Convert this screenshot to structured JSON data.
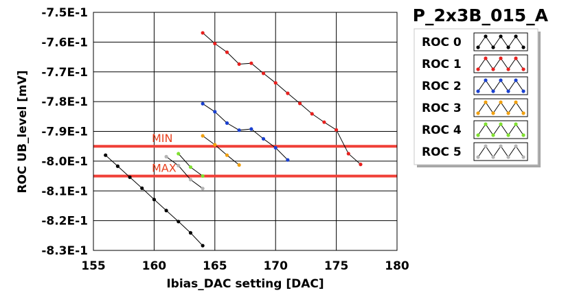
{
  "chart_data": {
    "type": "scatter",
    "title": "P_2x3B_015_A",
    "xlabel": "Ibias_DAC setting [DAC]",
    "ylabel": "ROC UB_level [mV]",
    "xlim": [
      155,
      180
    ],
    "ylim": [
      -0.83,
      -0.75
    ],
    "x_ticks": [
      "155",
      "160",
      "165",
      "170",
      "175",
      "180"
    ],
    "y_ticks": [
      "-7.5E-1",
      "-7.6E-1",
      "-7.7E-1",
      "-7.8E-1",
      "-7.9E-1",
      "-8.0E-1",
      "-8.1E-1",
      "-8.2E-1",
      "-8.3E-1"
    ],
    "grid": true,
    "legend_position": "right",
    "limits": [
      {
        "label": "MIN",
        "y": -0.795,
        "color": "#f04038"
      },
      {
        "label": "MAX",
        "y": -0.805,
        "color": "#f04038"
      }
    ],
    "series": [
      {
        "name": "ROC 0",
        "color": "#000000",
        "x": [
          156,
          157,
          158,
          159,
          160,
          161,
          162,
          163,
          164
        ],
        "y": [
          -0.798,
          -0.8017,
          -0.8054,
          -0.8091,
          -0.8129,
          -0.8166,
          -0.8203,
          -0.8241,
          -0.8284
        ]
      },
      {
        "name": "ROC 1",
        "color": "#e8201e",
        "x": [
          164,
          165,
          166,
          167,
          168,
          169,
          170,
          171,
          172,
          173,
          174,
          175,
          176,
          177
        ],
        "y": [
          -0.7569,
          -0.7605,
          -0.7634,
          -0.7674,
          -0.7671,
          -0.7705,
          -0.7737,
          -0.7772,
          -0.7806,
          -0.7841,
          -0.7869,
          -0.7895,
          -0.7975,
          -0.8011
        ]
      },
      {
        "name": "ROC 2",
        "color": "#1a40d0",
        "x": [
          164,
          165,
          166,
          167,
          168,
          169,
          170,
          171
        ],
        "y": [
          -0.7807,
          -0.7834,
          -0.7872,
          -0.7896,
          -0.7892,
          -0.7925,
          -0.7955,
          -0.7996
        ]
      },
      {
        "name": "ROC 3",
        "color": "#f0a010",
        "x": [
          164,
          165,
          166,
          167
        ],
        "y": [
          -0.7915,
          -0.7945,
          -0.798,
          -0.8013
        ]
      },
      {
        "name": "ROC 4",
        "color": "#80e030",
        "x": [
          162,
          163,
          164
        ],
        "y": [
          -0.7975,
          -0.802,
          -0.805
        ]
      },
      {
        "name": "ROC 5",
        "color": "#b4b4b4",
        "x": [
          161,
          162,
          163,
          164
        ],
        "y": [
          -0.7985,
          -0.8015,
          -0.8062,
          -0.8092
        ]
      }
    ]
  }
}
